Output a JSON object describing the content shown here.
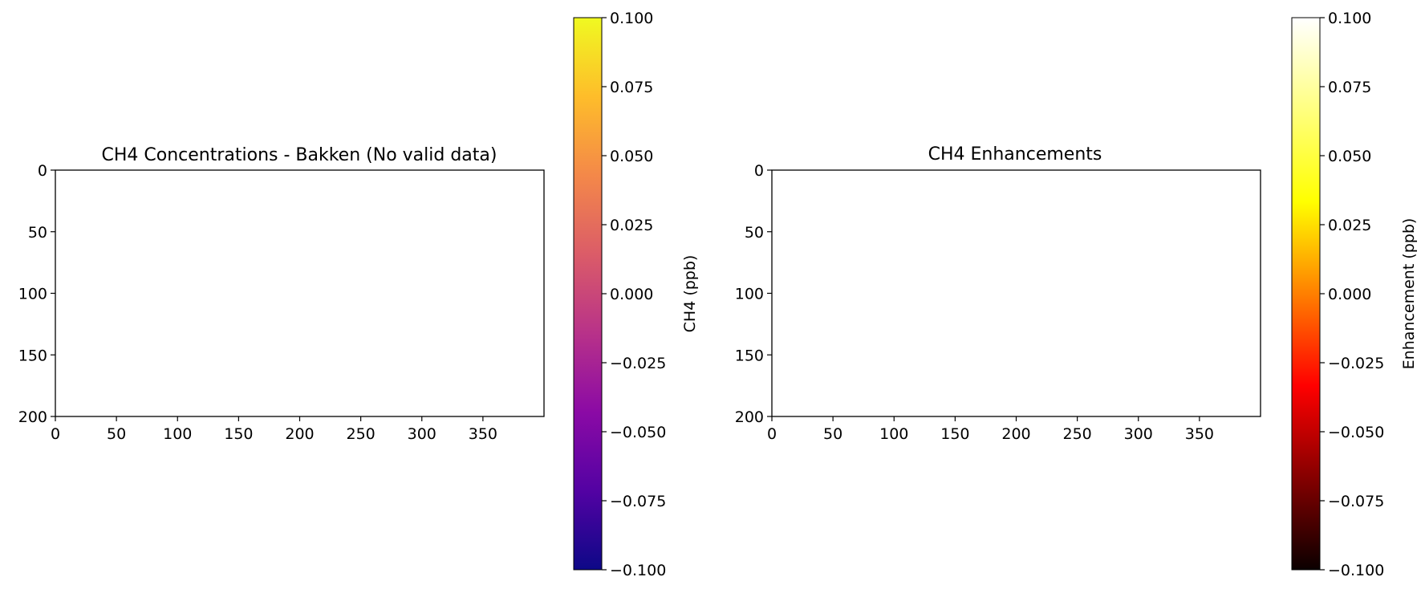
{
  "chart_data": [
    {
      "type": "heatmap",
      "title": "CH4 Concentrations - Bakken (No valid data)",
      "xlabel": "",
      "ylabel": "",
      "x_ticks": [
        "0",
        "50",
        "100",
        "150",
        "200",
        "250",
        "300",
        "350"
      ],
      "y_ticks": [
        "0",
        "50",
        "100",
        "150",
        "200"
      ],
      "xlim": [
        0,
        400
      ],
      "ylim": [
        200,
        0
      ],
      "values": [],
      "colorbar": {
        "label": "CH4 (ppb)",
        "colormap": "plasma",
        "range": [
          -0.1,
          0.1
        ],
        "ticks": [
          "−0.100",
          "−0.075",
          "−0.050",
          "−0.025",
          "0.000",
          "0.025",
          "0.050",
          "0.075",
          "0.100"
        ],
        "colors": [
          "#0d0887",
          "#5302a3",
          "#8b0aa5",
          "#b83289",
          "#db5c68",
          "#f48849",
          "#febd2a",
          "#f0f921"
        ]
      }
    },
    {
      "type": "heatmap",
      "title": "CH4 Enhancements",
      "xlabel": "",
      "ylabel": "",
      "x_ticks": [
        "0",
        "50",
        "100",
        "150",
        "200",
        "250",
        "300",
        "350"
      ],
      "y_ticks": [
        "0",
        "50",
        "100",
        "150",
        "200"
      ],
      "xlim": [
        0,
        400
      ],
      "ylim": [
        200,
        0
      ],
      "values": [],
      "colorbar": {
        "label": "Enhancement (ppb)",
        "colormap": "hot",
        "range": [
          -0.1,
          0.1
        ],
        "ticks": [
          "−0.100",
          "−0.075",
          "−0.050",
          "−0.025",
          "0.000",
          "0.025",
          "0.050",
          "0.075",
          "0.100"
        ],
        "colors": [
          "#0b0000",
          "#ff0000",
          "#ffff00",
          "#ffffff"
        ]
      }
    }
  ]
}
